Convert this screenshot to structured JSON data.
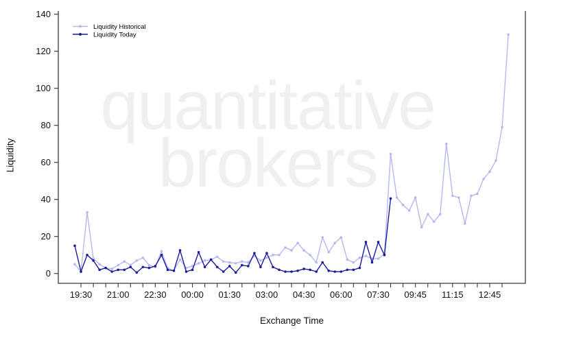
{
  "chart_data": {
    "type": "line",
    "title": "",
    "xlabel": "Exchange Time",
    "ylabel": "Liquidity",
    "ylim": [
      0,
      140
    ],
    "yticks": [
      0,
      20,
      40,
      60,
      80,
      100,
      120,
      140
    ],
    "x_tick_labels": [
      "19:30",
      "21:00",
      "22:30",
      "00:00",
      "01:30",
      "03:00",
      "04:30",
      "06:00",
      "07:30",
      "09:45",
      "11:15",
      "12:45"
    ],
    "x_tick_label_indices": [
      1,
      7,
      13,
      19,
      25,
      31,
      37,
      43,
      49,
      55,
      61,
      67
    ],
    "x_minor_tick_step": 2,
    "grid": false,
    "legend_position": "top-left",
    "watermark": [
      "quantitative",
      "brokers"
    ],
    "axis_color": "#3a3a3a",
    "series": [
      {
        "name": "Liquidity Historical",
        "color": "#b5b8f0",
        "marker": "circle",
        "values": [
          5,
          1,
          33,
          8,
          5,
          3,
          2.5,
          4.5,
          6.5,
          4.5,
          7,
          8.5,
          4.5,
          3.5,
          12,
          3,
          1.5,
          7.5,
          3,
          4,
          5.5,
          7,
          7.5,
          9,
          6.5,
          6,
          5.5,
          6.5,
          6,
          9.5,
          7,
          8.5,
          10,
          10,
          14,
          12.5,
          16.5,
          12.5,
          10,
          6,
          19.5,
          11.5,
          16.5,
          19.5,
          7.5,
          6,
          8.5,
          9.5,
          8,
          8,
          10.5,
          64.5,
          41,
          37,
          34,
          41,
          25,
          32,
          28,
          32,
          70,
          42,
          41,
          27,
          42,
          43,
          51,
          55,
          61,
          79,
          129
        ]
      },
      {
        "name": "Liquidity Today",
        "color": "#1b1b9e",
        "marker": "circle",
        "values": [
          15,
          1,
          10,
          7,
          2,
          3,
          1,
          2,
          2,
          3.5,
          0.5,
          3.5,
          3,
          4,
          10,
          2,
          1.5,
          12.5,
          1,
          2,
          11.5,
          3.5,
          7.5,
          3.5,
          1,
          4,
          0.5,
          4.5,
          4,
          11,
          3.5,
          11,
          3.5,
          2,
          1,
          1,
          1.5,
          2.5,
          2,
          1,
          6,
          1.5,
          1,
          1,
          2,
          2,
          3,
          17,
          6,
          17,
          10,
          40.5
        ]
      }
    ]
  }
}
